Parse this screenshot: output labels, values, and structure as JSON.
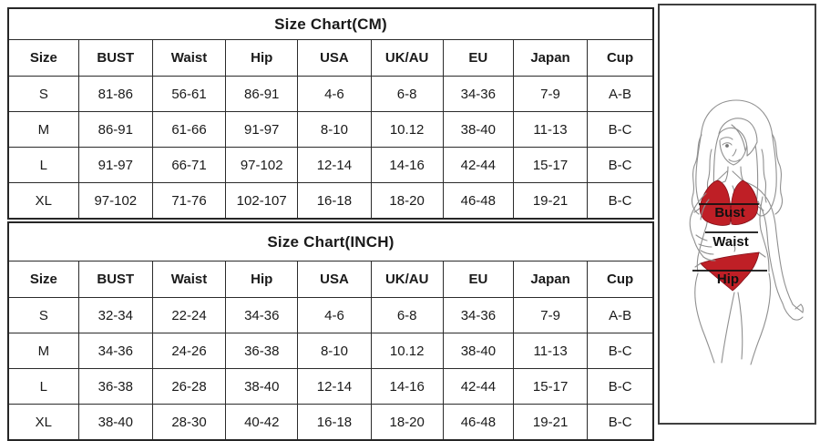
{
  "page": {
    "background": "#ffffff",
    "border_color": "#2b2b2b"
  },
  "tables": [
    {
      "title": "Size Chart(CM)",
      "headers": [
        "Size",
        "BUST",
        "Waist",
        "Hip",
        "USA",
        "UK/AU",
        "EU",
        "Japan",
        "Cup"
      ],
      "rows": [
        [
          "S",
          "81-86",
          "56-61",
          "86-91",
          "4-6",
          "6-8",
          "34-36",
          "7-9",
          "A-B"
        ],
        [
          "M",
          "86-91",
          "61-66",
          "91-97",
          "8-10",
          "10.12",
          "38-40",
          "11-13",
          "B-C"
        ],
        [
          "L",
          "91-97",
          "66-71",
          "97-102",
          "12-14",
          "14-16",
          "42-44",
          "15-17",
          "B-C"
        ],
        [
          "XL",
          "97-102",
          "71-76",
          "102-107",
          "16-18",
          "18-20",
          "46-48",
          "19-21",
          "B-C"
        ]
      ]
    },
    {
      "title": "Size Chart(INCH)",
      "headers": [
        "Size",
        "BUST",
        "Waist",
        "Hip",
        "USA",
        "UK/AU",
        "EU",
        "Japan",
        "Cup"
      ],
      "rows": [
        [
          "S",
          "32-34",
          "22-24",
          "34-36",
          "4-6",
          "6-8",
          "34-36",
          "7-9",
          "A-B"
        ],
        [
          "M",
          "34-36",
          "24-26",
          "36-38",
          "8-10",
          "10.12",
          "38-40",
          "11-13",
          "B-C"
        ],
        [
          "L",
          "36-38",
          "26-28",
          "38-40",
          "12-14",
          "14-16",
          "42-44",
          "15-17",
          "B-C"
        ],
        [
          "XL",
          "38-40",
          "28-30",
          "40-42",
          "16-18",
          "18-20",
          "46-48",
          "19-21",
          "B-C"
        ]
      ]
    }
  ],
  "figure": {
    "bust_label": "Bust",
    "waist_label": "Waist",
    "hip_label": "Hip",
    "bikini_color": "#bf1f26",
    "outline_color": "#909090",
    "measure_line_color": "#111111"
  }
}
